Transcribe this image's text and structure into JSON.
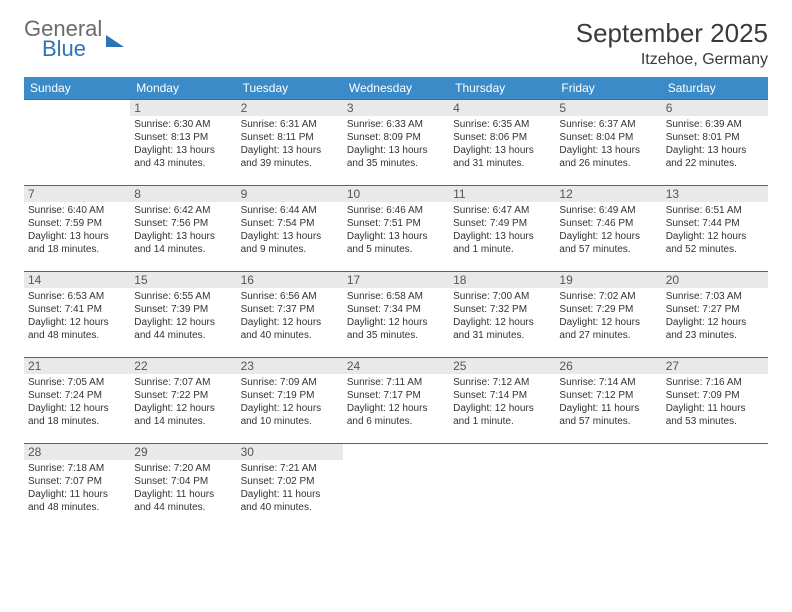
{
  "logo": {
    "line1": "General",
    "line2": "Blue"
  },
  "title": "September 2025",
  "location": "Itzehoe, Germany",
  "colors": {
    "header_bg": "#3b8bc9",
    "header_text": "#ffffff",
    "daynum_bg": "#e9e9e9",
    "row_border": "#2f6fa8",
    "body_text": "#333333",
    "logo_gray": "#6b6b6b",
    "logo_blue": "#2f73b7"
  },
  "days_of_week": [
    "Sunday",
    "Monday",
    "Tuesday",
    "Wednesday",
    "Thursday",
    "Friday",
    "Saturday"
  ],
  "weeks": [
    [
      {
        "n": "",
        "sr": "",
        "ss": "",
        "dl": ""
      },
      {
        "n": "1",
        "sr": "6:30 AM",
        "ss": "8:13 PM",
        "dl": "13 hours and 43 minutes."
      },
      {
        "n": "2",
        "sr": "6:31 AM",
        "ss": "8:11 PM",
        "dl": "13 hours and 39 minutes."
      },
      {
        "n": "3",
        "sr": "6:33 AM",
        "ss": "8:09 PM",
        "dl": "13 hours and 35 minutes."
      },
      {
        "n": "4",
        "sr": "6:35 AM",
        "ss": "8:06 PM",
        "dl": "13 hours and 31 minutes."
      },
      {
        "n": "5",
        "sr": "6:37 AM",
        "ss": "8:04 PM",
        "dl": "13 hours and 26 minutes."
      },
      {
        "n": "6",
        "sr": "6:39 AM",
        "ss": "8:01 PM",
        "dl": "13 hours and 22 minutes."
      }
    ],
    [
      {
        "n": "7",
        "sr": "6:40 AM",
        "ss": "7:59 PM",
        "dl": "13 hours and 18 minutes."
      },
      {
        "n": "8",
        "sr": "6:42 AM",
        "ss": "7:56 PM",
        "dl": "13 hours and 14 minutes."
      },
      {
        "n": "9",
        "sr": "6:44 AM",
        "ss": "7:54 PM",
        "dl": "13 hours and 9 minutes."
      },
      {
        "n": "10",
        "sr": "6:46 AM",
        "ss": "7:51 PM",
        "dl": "13 hours and 5 minutes."
      },
      {
        "n": "11",
        "sr": "6:47 AM",
        "ss": "7:49 PM",
        "dl": "13 hours and 1 minute."
      },
      {
        "n": "12",
        "sr": "6:49 AM",
        "ss": "7:46 PM",
        "dl": "12 hours and 57 minutes."
      },
      {
        "n": "13",
        "sr": "6:51 AM",
        "ss": "7:44 PM",
        "dl": "12 hours and 52 minutes."
      }
    ],
    [
      {
        "n": "14",
        "sr": "6:53 AM",
        "ss": "7:41 PM",
        "dl": "12 hours and 48 minutes."
      },
      {
        "n": "15",
        "sr": "6:55 AM",
        "ss": "7:39 PM",
        "dl": "12 hours and 44 minutes."
      },
      {
        "n": "16",
        "sr": "6:56 AM",
        "ss": "7:37 PM",
        "dl": "12 hours and 40 minutes."
      },
      {
        "n": "17",
        "sr": "6:58 AM",
        "ss": "7:34 PM",
        "dl": "12 hours and 35 minutes."
      },
      {
        "n": "18",
        "sr": "7:00 AM",
        "ss": "7:32 PM",
        "dl": "12 hours and 31 minutes."
      },
      {
        "n": "19",
        "sr": "7:02 AM",
        "ss": "7:29 PM",
        "dl": "12 hours and 27 minutes."
      },
      {
        "n": "20",
        "sr": "7:03 AM",
        "ss": "7:27 PM",
        "dl": "12 hours and 23 minutes."
      }
    ],
    [
      {
        "n": "21",
        "sr": "7:05 AM",
        "ss": "7:24 PM",
        "dl": "12 hours and 18 minutes."
      },
      {
        "n": "22",
        "sr": "7:07 AM",
        "ss": "7:22 PM",
        "dl": "12 hours and 14 minutes."
      },
      {
        "n": "23",
        "sr": "7:09 AM",
        "ss": "7:19 PM",
        "dl": "12 hours and 10 minutes."
      },
      {
        "n": "24",
        "sr": "7:11 AM",
        "ss": "7:17 PM",
        "dl": "12 hours and 6 minutes."
      },
      {
        "n": "25",
        "sr": "7:12 AM",
        "ss": "7:14 PM",
        "dl": "12 hours and 1 minute."
      },
      {
        "n": "26",
        "sr": "7:14 AM",
        "ss": "7:12 PM",
        "dl": "11 hours and 57 minutes."
      },
      {
        "n": "27",
        "sr": "7:16 AM",
        "ss": "7:09 PM",
        "dl": "11 hours and 53 minutes."
      }
    ],
    [
      {
        "n": "28",
        "sr": "7:18 AM",
        "ss": "7:07 PM",
        "dl": "11 hours and 48 minutes."
      },
      {
        "n": "29",
        "sr": "7:20 AM",
        "ss": "7:04 PM",
        "dl": "11 hours and 44 minutes."
      },
      {
        "n": "30",
        "sr": "7:21 AM",
        "ss": "7:02 PM",
        "dl": "11 hours and 40 minutes."
      },
      {
        "n": "",
        "sr": "",
        "ss": "",
        "dl": ""
      },
      {
        "n": "",
        "sr": "",
        "ss": "",
        "dl": ""
      },
      {
        "n": "",
        "sr": "",
        "ss": "",
        "dl": ""
      },
      {
        "n": "",
        "sr": "",
        "ss": "",
        "dl": ""
      }
    ]
  ],
  "labels": {
    "sunrise": "Sunrise:",
    "sunset": "Sunset:",
    "daylight": "Daylight:"
  }
}
